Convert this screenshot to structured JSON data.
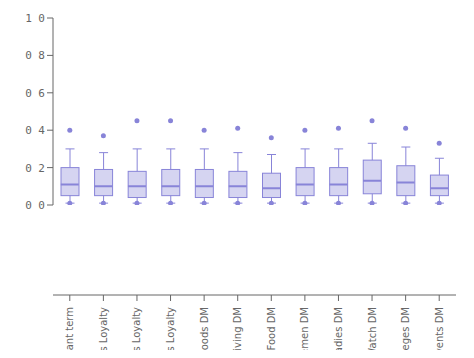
{
  "chart_data": {
    "type": "box",
    "categories": [
      "Constant term",
      "Convenience goods Loyalty",
      "Shopping goods Loyalty",
      "Specialty goods Loyalty",
      "Brand goods DM",
      "Living DM",
      "Food DM",
      "Gentlemen DM",
      "Ladies DM",
      "Jewelry and Watch DM",
      "Privileges DM",
      "Storewide events DM"
    ],
    "boxes": [
      {
        "whislo": 0.01,
        "q1": 0.05,
        "med": 0.11,
        "q3": 0.2,
        "whishi": 0.3,
        "fliers": [
          0.4,
          0.01
        ]
      },
      {
        "whislo": 0.01,
        "q1": 0.05,
        "med": 0.1,
        "q3": 0.19,
        "whishi": 0.28,
        "fliers": [
          0.37,
          0.01
        ]
      },
      {
        "whislo": 0.01,
        "q1": 0.04,
        "med": 0.1,
        "q3": 0.18,
        "whishi": 0.3,
        "fliers": [
          0.45,
          0.01
        ]
      },
      {
        "whislo": 0.01,
        "q1": 0.05,
        "med": 0.1,
        "q3": 0.19,
        "whishi": 0.3,
        "fliers": [
          0.45,
          0.01
        ]
      },
      {
        "whislo": 0.01,
        "q1": 0.04,
        "med": 0.1,
        "q3": 0.19,
        "whishi": 0.3,
        "fliers": [
          0.4,
          0.01
        ]
      },
      {
        "whislo": 0.01,
        "q1": 0.04,
        "med": 0.1,
        "q3": 0.18,
        "whishi": 0.28,
        "fliers": [
          0.41,
          0.01
        ]
      },
      {
        "whislo": 0.01,
        "q1": 0.04,
        "med": 0.09,
        "q3": 0.17,
        "whishi": 0.27,
        "fliers": [
          0.36,
          0.01
        ]
      },
      {
        "whislo": 0.01,
        "q1": 0.05,
        "med": 0.11,
        "q3": 0.2,
        "whishi": 0.3,
        "fliers": [
          0.4,
          0.01
        ]
      },
      {
        "whislo": 0.01,
        "q1": 0.05,
        "med": 0.11,
        "q3": 0.2,
        "whishi": 0.3,
        "fliers": [
          0.41,
          0.01
        ]
      },
      {
        "whislo": 0.01,
        "q1": 0.06,
        "med": 0.13,
        "q3": 0.24,
        "whishi": 0.33,
        "fliers": [
          0.45,
          0.01
        ]
      },
      {
        "whislo": 0.01,
        "q1": 0.05,
        "med": 0.12,
        "q3": 0.21,
        "whishi": 0.31,
        "fliers": [
          0.41,
          0.01
        ]
      },
      {
        "whislo": 0.01,
        "q1": 0.05,
        "med": 0.09,
        "q3": 0.16,
        "whishi": 0.25,
        "fliers": [
          0.33,
          0.01
        ]
      }
    ],
    "ylim": [
      0.0,
      1.0
    ],
    "yticks": [
      {
        "value": 0.0,
        "label": "0 0"
      },
      {
        "value": 0.2,
        "label": "0 2"
      },
      {
        "value": 0.4,
        "label": "0 4"
      },
      {
        "value": 0.6,
        "label": "0 6"
      },
      {
        "value": 0.8,
        "label": "0 8"
      },
      {
        "value": 1.0,
        "label": "1 0"
      }
    ],
    "color": "#8884d8"
  }
}
